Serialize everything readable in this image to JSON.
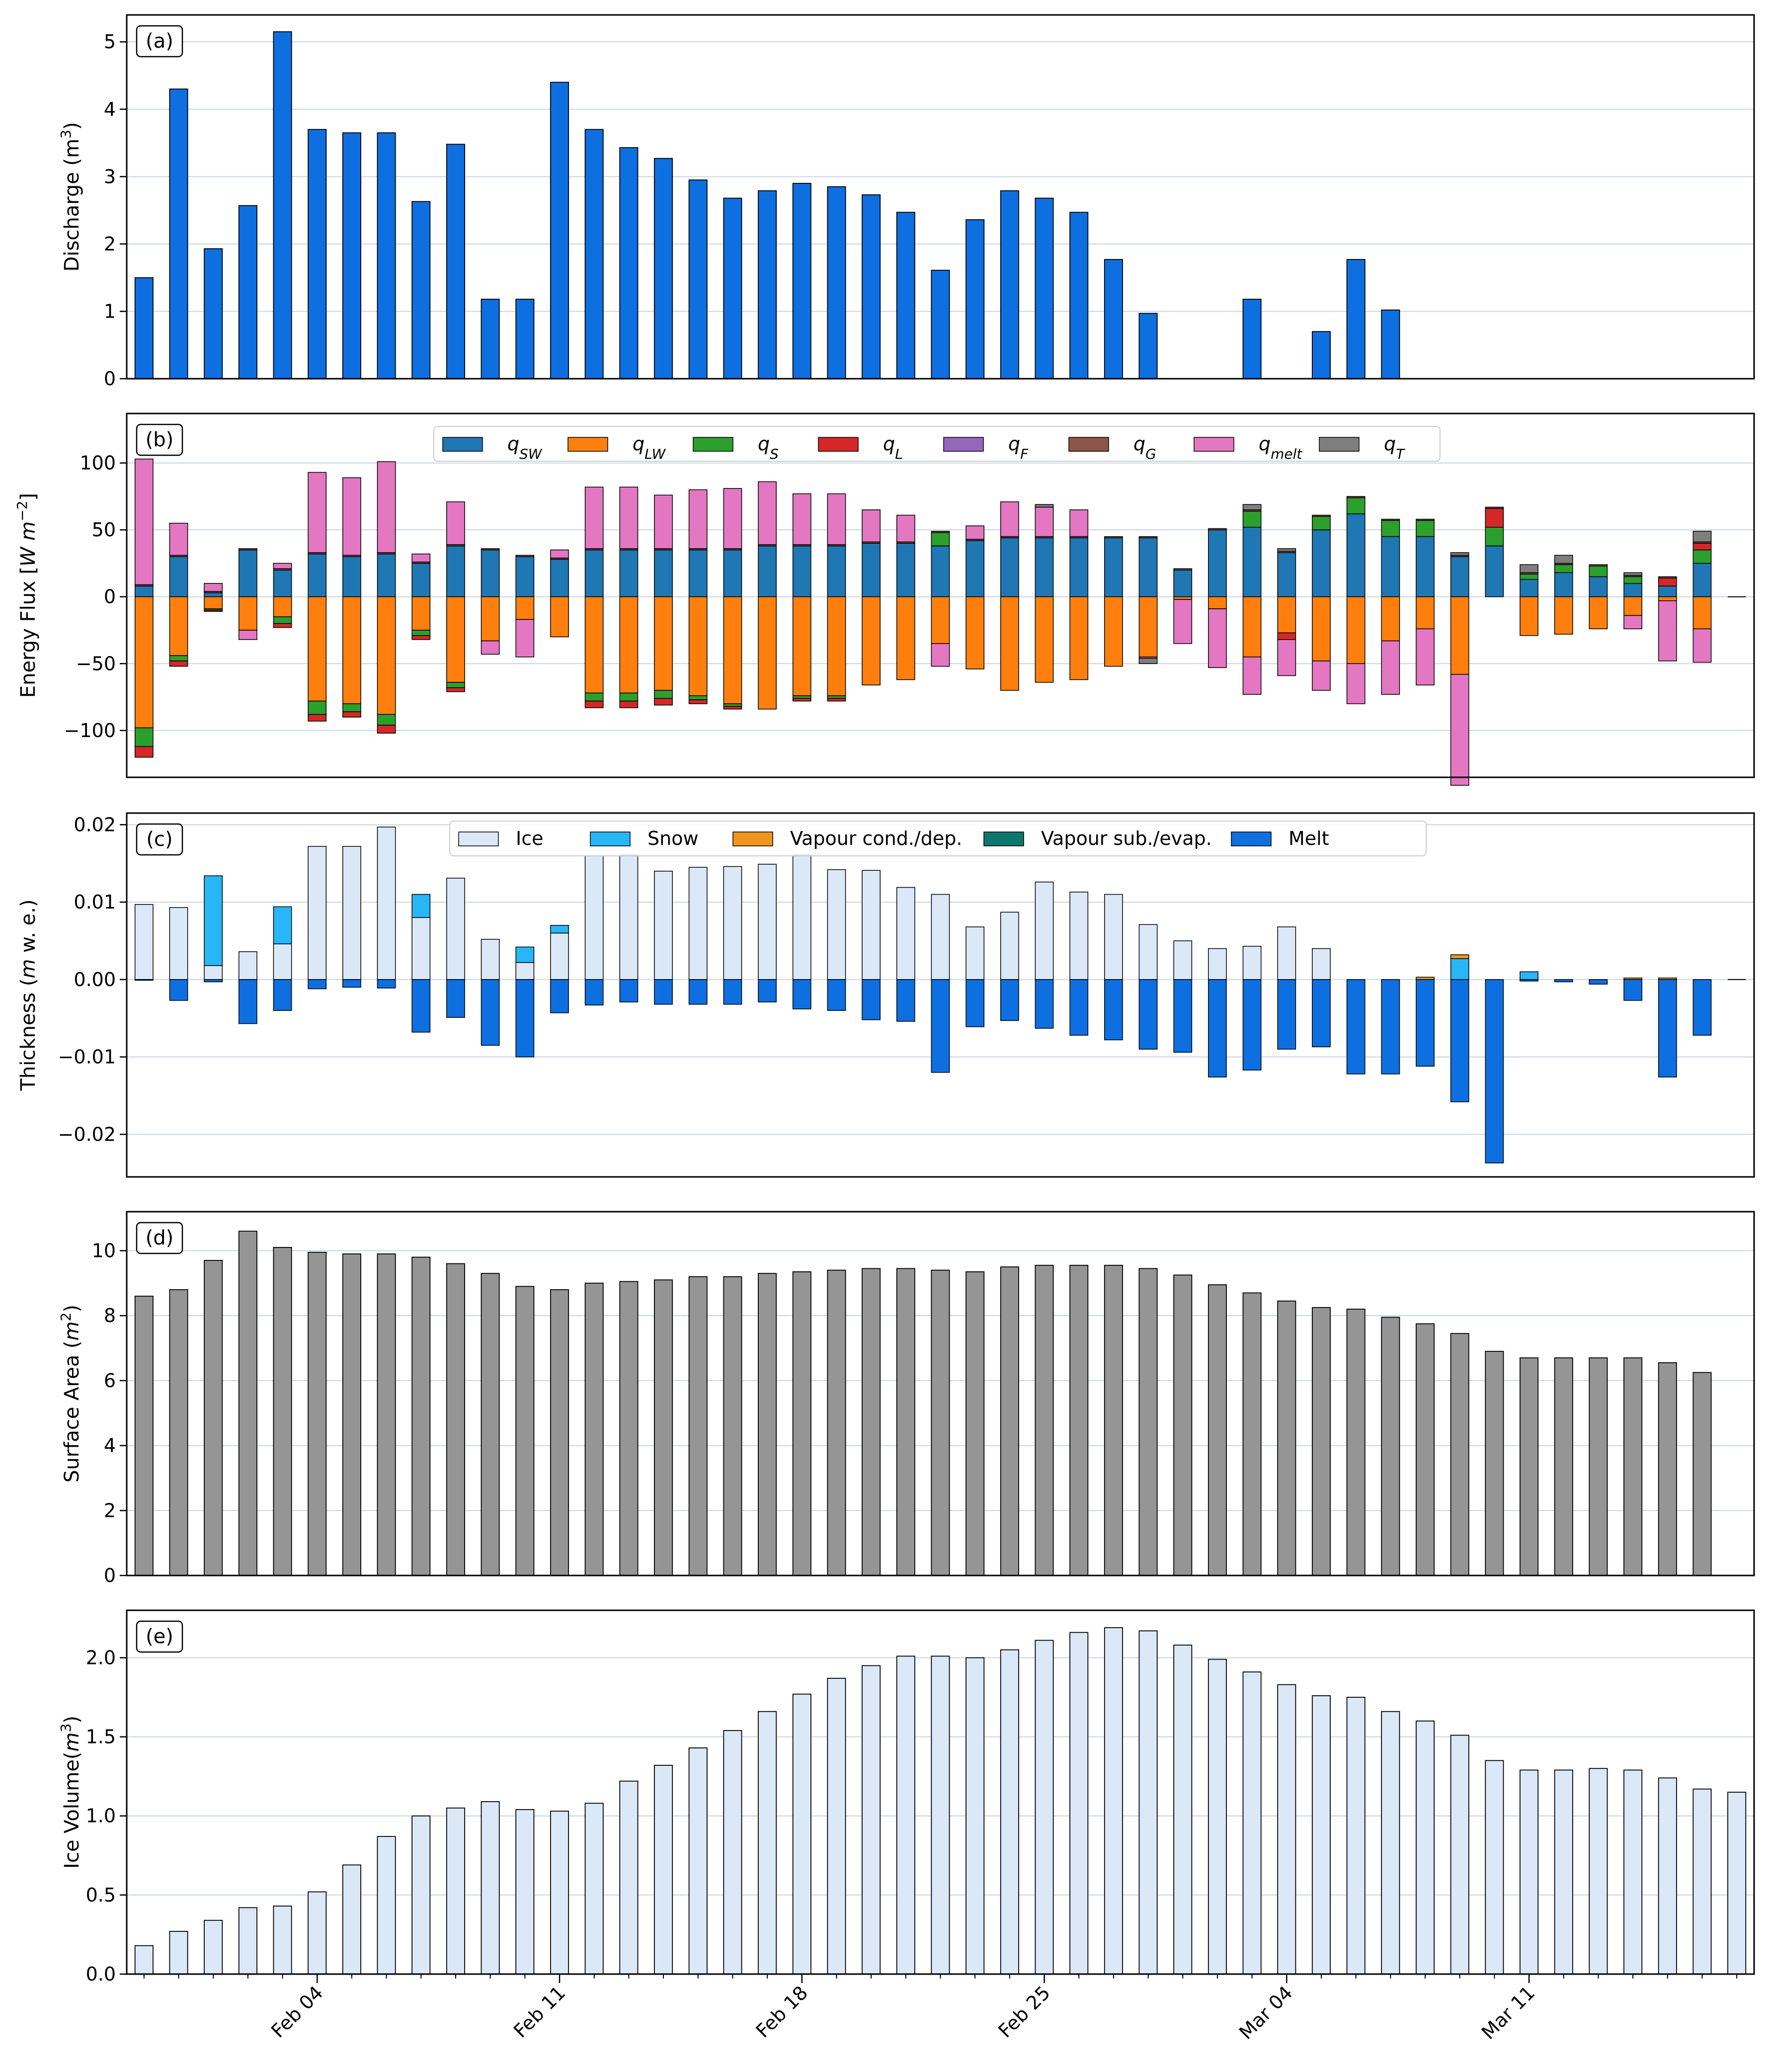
{
  "chart_data": [
    {
      "type": "bar",
      "panel": "(a)",
      "ylabel": "Discharge ($m^3$)",
      "ylabel_text": "Discharge (m",
      "ylabel_sup": "3",
      "ylabel_tail": ")",
      "ylim": [
        0,
        5.4
      ],
      "yticks": [
        0,
        1,
        2,
        3,
        4,
        5
      ],
      "ytick_labels": [
        "0",
        "1",
        "2",
        "3",
        "4",
        "5"
      ],
      "grid": true,
      "color": "#0e6fe0",
      "values": [
        1.5,
        4.3,
        1.93,
        2.57,
        5.15,
        3.7,
        3.65,
        3.65,
        2.63,
        3.48,
        1.18,
        1.18,
        4.4,
        3.7,
        3.43,
        3.27,
        2.95,
        2.68,
        2.79,
        2.9,
        2.85,
        2.73,
        2.47,
        1.61,
        2.36,
        2.79,
        2.68,
        2.47,
        1.77,
        0.97,
        0,
        0,
        1.18,
        0,
        0.7,
        1.77,
        1.02
      ]
    },
    {
      "type": "bar",
      "stacked": true,
      "panel": "(b)",
      "ylabel_text": "Energy Flux [",
      "ylabel_italic": "W m",
      "ylabel_sup": "−2",
      "ylabel_tail": "]",
      "ylim": [
        -135,
        137
      ],
      "yticks": [
        -100,
        -50,
        0,
        50,
        100
      ],
      "ytick_labels": [
        "−100",
        "−50",
        "0",
        "50",
        "100"
      ],
      "grid": true,
      "legend_position": "top",
      "series": [
        {
          "name": "q",
          "sub": "SW",
          "color": "#1f77b4",
          "values": [
            8,
            30,
            3,
            35,
            20,
            32,
            30,
            32,
            25,
            38,
            35,
            30,
            28,
            35,
            35,
            35,
            35,
            35,
            38,
            38,
            38,
            40,
            40,
            38,
            42,
            44,
            44,
            44,
            44,
            44,
            20,
            50,
            52,
            33,
            50,
            62,
            45,
            45,
            30,
            38,
            13,
            18,
            15,
            10,
            8,
            25
          ]
        },
        {
          "name": "q",
          "sub": "LW",
          "color": "#ff7f0e",
          "values": [
            -98,
            -44,
            -9,
            -25,
            -15,
            -78,
            -80,
            -88,
            -25,
            -64,
            -33,
            -17,
            -30,
            -72,
            -72,
            -70,
            -74,
            -80,
            -84,
            -74,
            -74,
            -66,
            -62,
            -35,
            -54,
            -70,
            -64,
            -62,
            -52,
            -45,
            -2,
            -9,
            -45,
            -27,
            -48,
            -50,
            -33,
            -24,
            -58,
            0,
            -29,
            -28,
            -24,
            -14,
            -3,
            -24
          ]
        },
        {
          "name": "q",
          "sub": "S",
          "color": "#2ca02c",
          "values": [
            -14,
            -4,
            -1,
            0,
            -5,
            -10,
            -6,
            -8,
            -4,
            -4,
            0,
            0,
            0,
            -6,
            -6,
            -6,
            -3,
            -2,
            0,
            -2,
            -2,
            0,
            0,
            10,
            0,
            0,
            0,
            0,
            0,
            0,
            0,
            0,
            12,
            0,
            10,
            12,
            12,
            12,
            0,
            14,
            4,
            6,
            8,
            5,
            0,
            10
          ]
        },
        {
          "name": "q",
          "sub": "L",
          "color": "#d62728",
          "values": [
            -8,
            -4,
            -1,
            0,
            -3,
            -5,
            -4,
            -6,
            -3,
            -3,
            0,
            0,
            0,
            -5,
            -5,
            -5,
            -3,
            -2,
            0,
            -2,
            -2,
            0,
            0,
            0,
            0,
            0,
            0,
            0,
            0,
            0,
            0,
            0,
            0,
            -5,
            0,
            0,
            0,
            0,
            0,
            14,
            0,
            0,
            0,
            0,
            6,
            5
          ]
        },
        {
          "name": "q",
          "sub": "F",
          "color": "#9467bd",
          "values": [
            0,
            0,
            0,
            0,
            0,
            0,
            0,
            0,
            0,
            0,
            0,
            0,
            0,
            0,
            0,
            0,
            0,
            0,
            0,
            0,
            0,
            0,
            0,
            0,
            0,
            0,
            0,
            0,
            0,
            0,
            0,
            0,
            0,
            0,
            0,
            0,
            0,
            0,
            0,
            0,
            0,
            0,
            0,
            0,
            0,
            0
          ]
        },
        {
          "name": "q",
          "sub": "G",
          "color": "#8c564b",
          "values": [
            1,
            1,
            1,
            1,
            1,
            1,
            1,
            1,
            1,
            1,
            1,
            1,
            1,
            1,
            1,
            1,
            1,
            1,
            1,
            1,
            1,
            1,
            1,
            1,
            1,
            1,
            1,
            1,
            1,
            1,
            1,
            1,
            1,
            1,
            1,
            1,
            1,
            1,
            1,
            1,
            1,
            1,
            1,
            1,
            1,
            1
          ]
        },
        {
          "name": "q",
          "sub": "melt",
          "color": "#e377c2",
          "values": [
            94,
            24,
            6,
            -7,
            4,
            60,
            58,
            68,
            6,
            32,
            -10,
            -28,
            6,
            46,
            46,
            40,
            44,
            45,
            47,
            38,
            38,
            24,
            20,
            -17,
            10,
            26,
            22,
            20,
            0,
            -1,
            -33,
            -44,
            -28,
            -27,
            -22,
            -30,
            -40,
            -42,
            -83,
            0,
            0,
            0,
            0,
            -10,
            -45,
            -25
          ]
        },
        {
          "name": "q",
          "sub": "T",
          "color": "#7f7f7f",
          "values": [
            0,
            0,
            0,
            0,
            0,
            0,
            0,
            0,
            0,
            0,
            0,
            0,
            0,
            0,
            0,
            0,
            0,
            0,
            0,
            0,
            0,
            0,
            0,
            0,
            0,
            0,
            2,
            0,
            0,
            -4,
            0,
            0,
            4,
            2,
            0,
            0,
            0,
            0,
            2,
            0,
            6,
            6,
            0,
            2,
            0,
            8
          ]
        }
      ]
    },
    {
      "type": "bar",
      "stacked": true,
      "panel": "(c)",
      "ylabel_text": "Thickness (",
      "ylabel_italic": "m",
      "ylabel_tail": " w. e.)",
      "ylim": [
        -0.0255,
        0.0215
      ],
      "yticks": [
        -0.02,
        -0.01,
        0.0,
        0.01,
        0.02
      ],
      "ytick_labels": [
        "−0.02",
        "−0.01",
        "0.00",
        "0.01",
        "0.02"
      ],
      "grid": true,
      "legend_position": "top",
      "series": [
        {
          "name": "Ice",
          "color": "#dbe8f7",
          "values": [
            0.0097,
            0.0093,
            0.0018,
            0.0036,
            0.0046,
            0.0172,
            0.0172,
            0.0197,
            0.008,
            0.0131,
            0.0052,
            0.0022,
            0.006,
            0.016,
            0.0161,
            0.014,
            0.0145,
            0.0146,
            0.0149,
            0.0161,
            0.0142,
            0.0141,
            0.0119,
            0.011,
            0.0068,
            0.0087,
            0.0126,
            0.0113,
            0.011,
            0.0071,
            0.005,
            0.004,
            0.0043,
            0.0068,
            0.004,
            0,
            0,
            0,
            0,
            0,
            0,
            0,
            0,
            0,
            0,
            0
          ]
        },
        {
          "name": "Snow",
          "color": "#29b6f6",
          "values": [
            0,
            0,
            0.0116,
            0,
            0.0048,
            0,
            0,
            0,
            0.003,
            0,
            0,
            0.002,
            0.001,
            0,
            0,
            0,
            0,
            0,
            0,
            0,
            0,
            0,
            0,
            0,
            0,
            0,
            0,
            0,
            0,
            0,
            0,
            0,
            0,
            0,
            0,
            0,
            0,
            0,
            0.0027,
            0,
            0.001,
            0,
            0,
            0,
            0,
            0
          ]
        },
        {
          "name": "Vapour cond./dep.",
          "color": "#f0961e",
          "values": [
            0,
            0,
            0,
            0,
            0,
            0,
            0,
            0,
            0,
            0,
            0,
            0,
            0,
            0,
            0,
            0,
            0,
            0,
            0,
            0,
            0,
            0,
            0,
            0,
            0,
            0,
            0,
            0,
            0,
            0,
            0,
            0,
            0,
            0,
            0,
            0,
            0,
            0.0003,
            0.0005,
            0,
            0,
            0,
            0,
            0.0002,
            0.0002,
            0
          ]
        },
        {
          "name": "Vapour sub./evap.",
          "color": "#0f766e",
          "values": [
            0,
            0,
            0,
            0,
            0,
            0,
            0,
            0,
            0,
            0,
            0,
            0,
            0,
            0,
            0,
            0,
            0,
            0,
            0,
            0,
            0,
            0,
            0,
            0,
            0,
            0,
            0,
            0,
            0,
            0,
            0,
            0,
            0,
            0,
            0,
            0,
            0,
            0,
            0,
            0,
            0,
            0,
            0,
            0,
            0,
            0
          ]
        },
        {
          "name": "Melt",
          "color": "#0e6fe0",
          "values": [
            -0.0001,
            -0.0027,
            -0.0003,
            -0.0057,
            -0.004,
            -0.0012,
            -0.001,
            -0.0011,
            -0.0068,
            -0.0049,
            -0.0085,
            -0.01,
            -0.0043,
            -0.0033,
            -0.0029,
            -0.0032,
            -0.0032,
            -0.0032,
            -0.0029,
            -0.0038,
            -0.004,
            -0.0052,
            -0.0054,
            -0.012,
            -0.0061,
            -0.0053,
            -0.0063,
            -0.0072,
            -0.0078,
            -0.009,
            -0.0094,
            -0.0126,
            -0.0117,
            -0.009,
            -0.0087,
            -0.0122,
            -0.0122,
            -0.0112,
            -0.0158,
            -0.0237,
            -0.0002,
            -0.0003,
            -0.0006,
            -0.0027,
            -0.0126,
            -0.0072
          ]
        }
      ]
    },
    {
      "type": "bar",
      "panel": "(d)",
      "ylabel_text": "Surface Area (",
      "ylabel_italic": "m",
      "ylabel_sup": "2",
      "ylabel_tail": ")",
      "ylim": [
        0,
        11.2
      ],
      "yticks": [
        0,
        2,
        4,
        6,
        8,
        10
      ],
      "ytick_labels": [
        "0",
        "2",
        "4",
        "6",
        "8",
        "10"
      ],
      "grid": true,
      "color": "#959595",
      "values": [
        8.6,
        8.8,
        9.7,
        10.6,
        10.1,
        9.95,
        9.9,
        9.9,
        9.8,
        9.6,
        9.3,
        8.9,
        8.8,
        9.0,
        9.05,
        9.1,
        9.2,
        9.2,
        9.3,
        9.35,
        9.4,
        9.45,
        9.45,
        9.4,
        9.35,
        9.5,
        9.55,
        9.55,
        9.55,
        9.45,
        9.25,
        8.95,
        8.7,
        8.45,
        8.25,
        8.2,
        7.95,
        7.75,
        7.45,
        6.9,
        6.7,
        6.7,
        6.7,
        6.7,
        6.55,
        6.25
      ]
    },
    {
      "type": "bar",
      "panel": "(e)",
      "ylabel_text": "Ice Volume(",
      "ylabel_italic": "m",
      "ylabel_sup": "3",
      "ylabel_tail": ")",
      "ylim": [
        0,
        2.3
      ],
      "yticks": [
        0.0,
        0.5,
        1.0,
        1.5,
        2.0
      ],
      "ytick_labels": [
        "0.0",
        "0.5",
        "1.0",
        "1.5",
        "2.0"
      ],
      "grid": true,
      "color": "#dbe8f7",
      "values": [
        0.18,
        0.27,
        0.34,
        0.42,
        0.43,
        0.52,
        0.69,
        0.87,
        1.0,
        1.05,
        1.09,
        1.04,
        1.03,
        1.08,
        1.22,
        1.32,
        1.43,
        1.54,
        1.66,
        1.77,
        1.87,
        1.95,
        2.01,
        2.01,
        2.0,
        2.05,
        2.11,
        2.16,
        2.19,
        2.17,
        2.08,
        1.99,
        1.91,
        1.83,
        1.76,
        1.75,
        1.66,
        1.6,
        1.51,
        1.35,
        1.29,
        1.29,
        1.3,
        1.29,
        1.24,
        1.17,
        1.15
      ]
    }
  ],
  "x_axis": {
    "tick_labels": [
      "Feb 04",
      "Feb 11",
      "Feb 18",
      "Feb 25",
      "Mar 04",
      "Mar 11"
    ],
    "tick_indices": [
      5,
      12,
      19,
      26,
      33,
      40
    ],
    "days": 47
  },
  "legend_b": {
    "entries": [
      {
        "base": "q",
        "sub": "SW"
      },
      {
        "base": "q",
        "sub": "LW"
      },
      {
        "base": "q",
        "sub": "S"
      },
      {
        "base": "q",
        "sub": "L"
      },
      {
        "base": "q",
        "sub": "F"
      },
      {
        "base": "q",
        "sub": "G"
      },
      {
        "base": "q",
        "sub": "melt"
      },
      {
        "base": "q",
        "sub": "T"
      }
    ]
  },
  "legend_c": {
    "entries": [
      "Ice",
      "Snow",
      "Vapour cond./dep.",
      "Vapour sub./evap.",
      "Melt"
    ]
  }
}
